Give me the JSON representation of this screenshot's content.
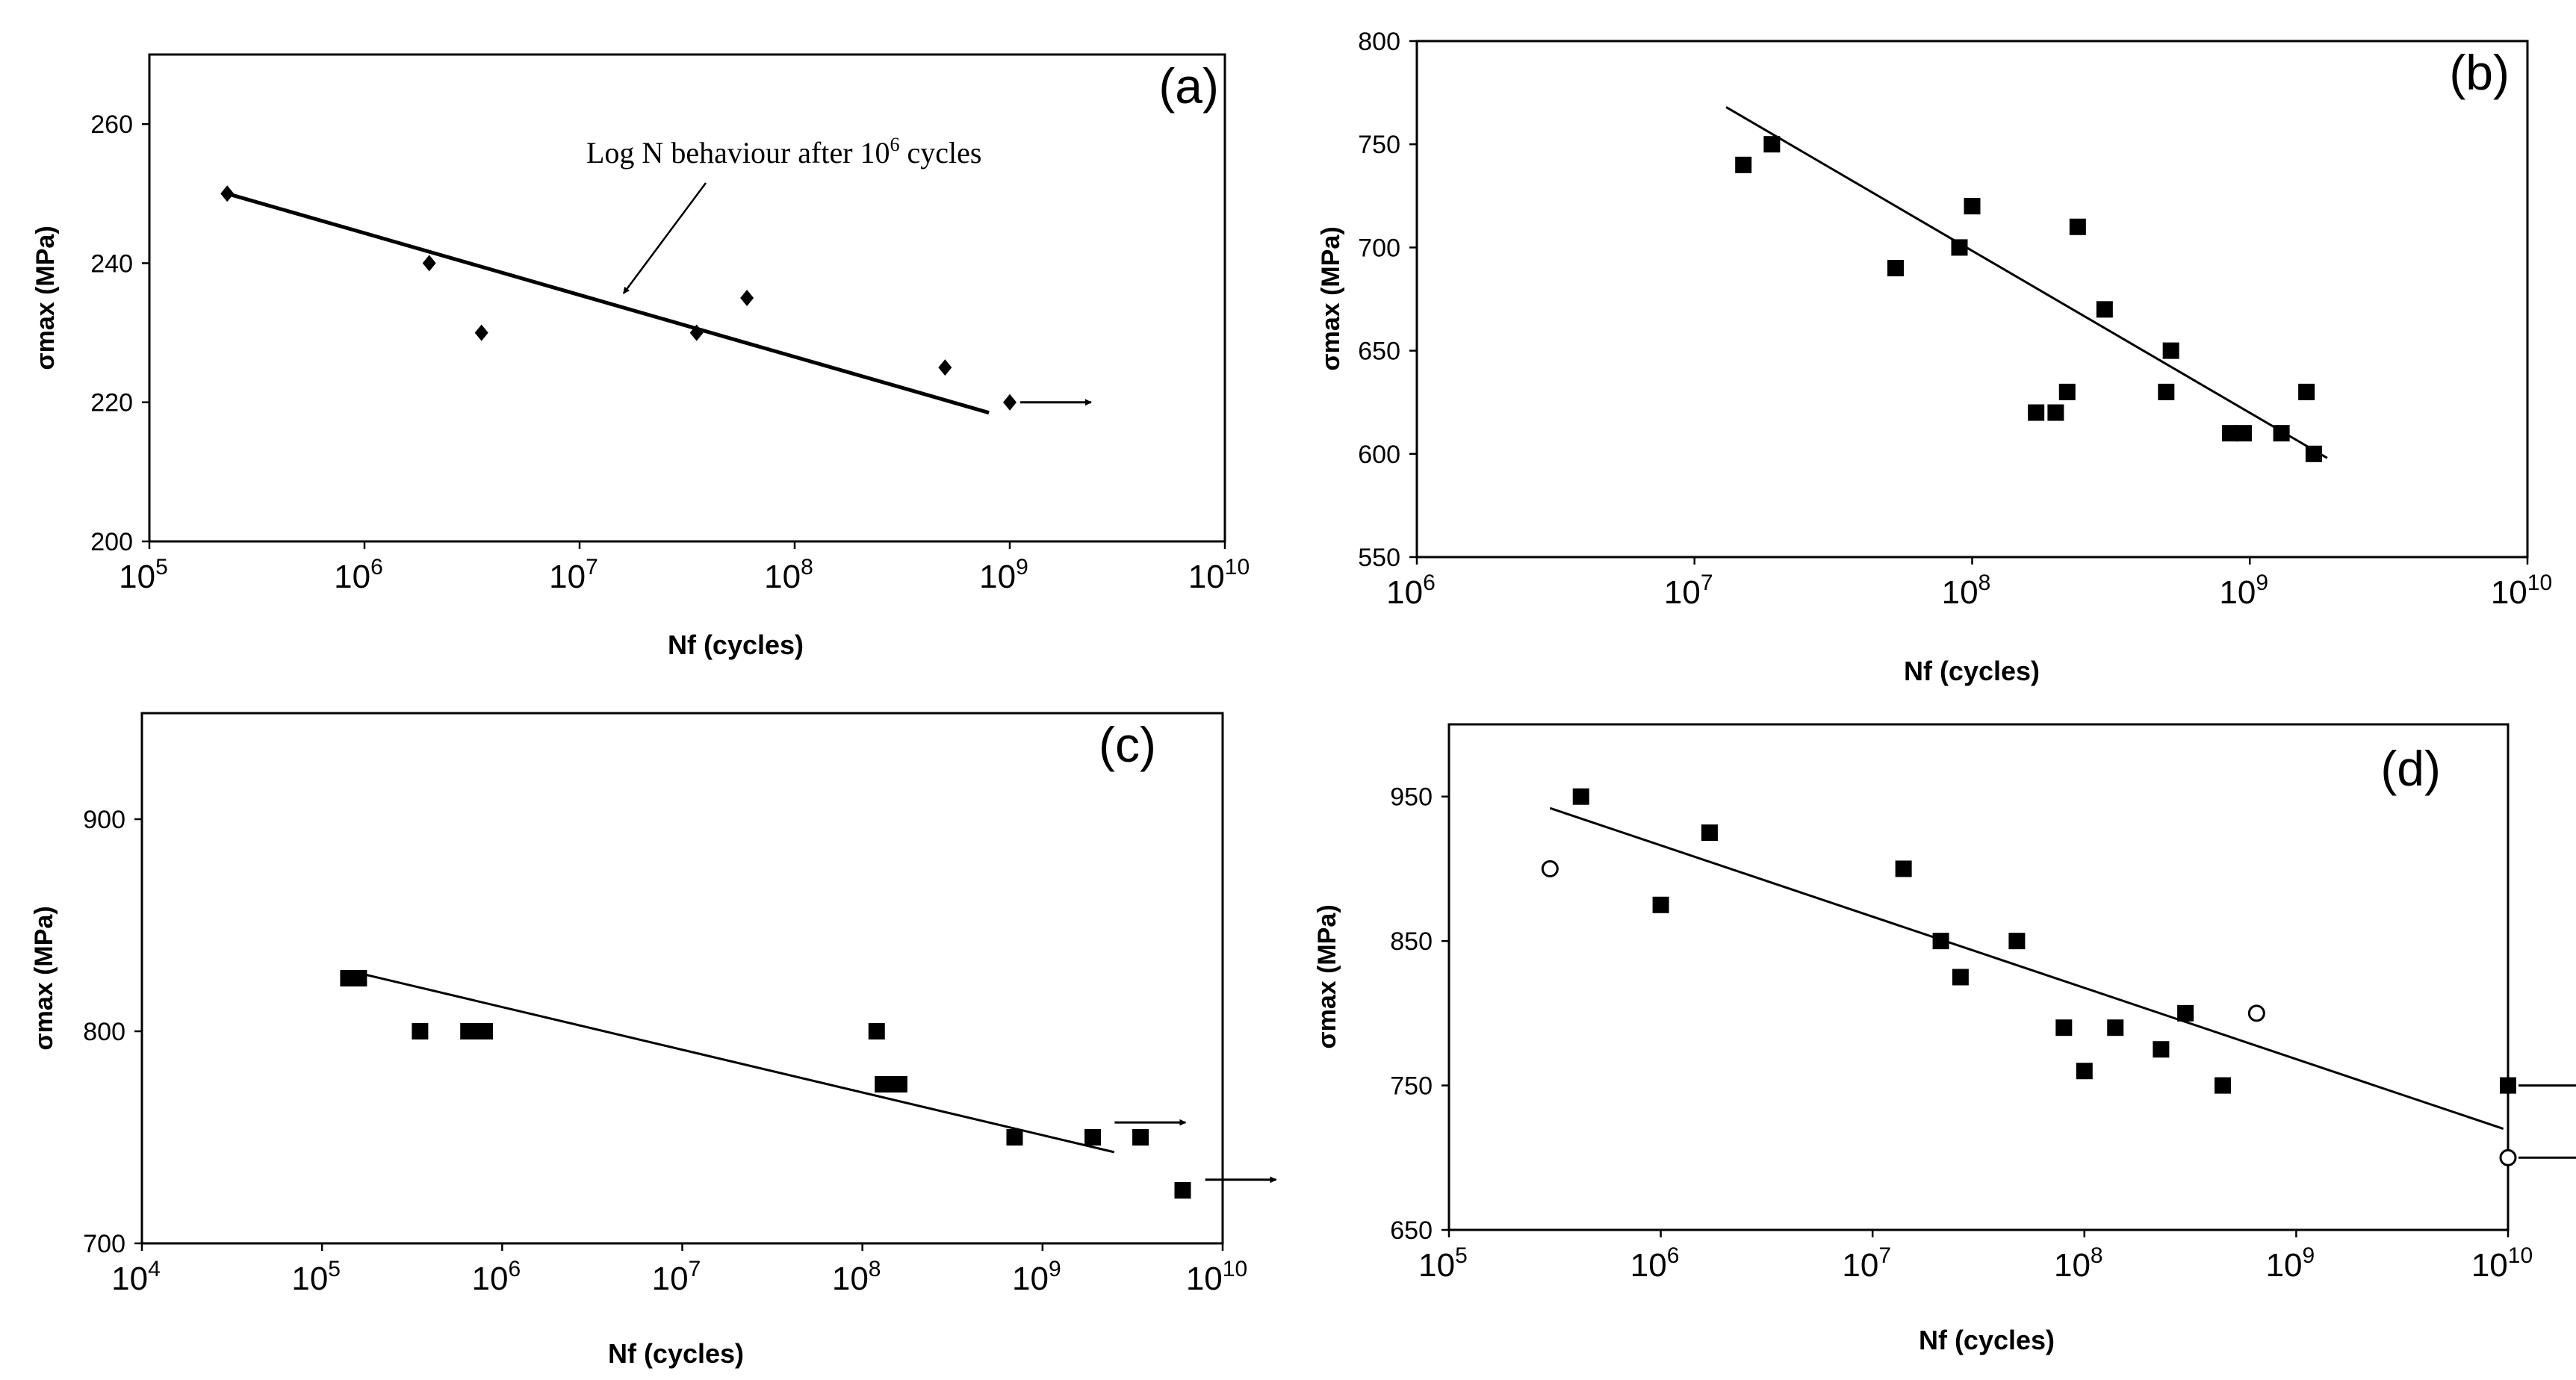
{
  "chart_data": [
    {
      "id": "a",
      "type": "scatter",
      "panel_label": "(a)",
      "xlabel": "Nf (cycles)",
      "ylabel": "σmax (MPa)",
      "x_scale": "log",
      "xlim": [
        100000,
        10000000000
      ],
      "ylim": [
        200,
        270
      ],
      "yticks": [
        200,
        220,
        240,
        260
      ],
      "xticks": [
        {
          "base": "10",
          "exp": "5"
        },
        {
          "base": "10",
          "exp": "6"
        },
        {
          "base": "10",
          "exp": "7"
        },
        {
          "base": "10",
          "exp": "8"
        },
        {
          "base": "10",
          "exp": "9"
        },
        {
          "base": "10",
          "exp": "10"
        }
      ],
      "series": [
        {
          "name": "data",
          "marker": "diamond",
          "points": [
            [
              230000,
              250
            ],
            [
              2000000,
              240
            ],
            [
              3500000,
              230
            ],
            [
              35000000,
              230
            ],
            [
              60000000,
              235
            ],
            [
              500000000,
              225
            ],
            [
              1000000000,
              220
            ]
          ]
        }
      ],
      "trendline": [
        [
          230000,
          250
        ],
        [
          800000000,
          218.5
        ]
      ],
      "runouts": [
        {
          "x": 1000000000,
          "y": 220
        }
      ],
      "annotation": {
        "text": "Log N behaviour after 10",
        "sup": "6",
        "text2": " cycles",
        "target": [
          16000000,
          235
        ]
      }
    },
    {
      "id": "b",
      "type": "scatter",
      "panel_label": "(b)",
      "xlabel": "Nf (cycles)",
      "ylabel": "σmax (MPa)",
      "x_scale": "log",
      "xlim": [
        1000000,
        10000000000
      ],
      "ylim": [
        550,
        800
      ],
      "yticks": [
        550,
        600,
        650,
        700,
        750,
        800
      ],
      "xticks": [
        {
          "base": "10",
          "exp": "6"
        },
        {
          "base": "10",
          "exp": "7"
        },
        {
          "base": "10",
          "exp": "8"
        },
        {
          "base": "10",
          "exp": "9"
        },
        {
          "base": "10",
          "exp": "10"
        }
      ],
      "series": [
        {
          "name": "data",
          "marker": "square",
          "points": [
            [
              15000000,
              740
            ],
            [
              19000000,
              750
            ],
            [
              53000000,
              690
            ],
            [
              90000000,
              700
            ],
            [
              100000000,
              720
            ],
            [
              170000000,
              620
            ],
            [
              200000000,
              620
            ],
            [
              220000000,
              630
            ],
            [
              240000000,
              710
            ],
            [
              300000000,
              670
            ],
            [
              500000000,
              630
            ],
            [
              520000000,
              650
            ],
            [
              850000000,
              610
            ],
            [
              950000000,
              610
            ],
            [
              1300000000,
              610
            ],
            [
              1600000000,
              630
            ],
            [
              1700000000,
              600
            ]
          ]
        }
      ],
      "trendline": [
        [
          13000000,
          768
        ],
        [
          1900000000,
          598
        ]
      ],
      "runouts": []
    },
    {
      "id": "c",
      "type": "scatter",
      "panel_label": "(c)",
      "xlabel": "Nf (cycles)",
      "ylabel": "σmax (MPa)",
      "x_scale": "log",
      "xlim": [
        10000,
        10000000000
      ],
      "ylim": [
        700,
        950
      ],
      "yticks": [
        700,
        800,
        900
      ],
      "xticks": [
        {
          "base": "10",
          "exp": "4"
        },
        {
          "base": "10",
          "exp": "5"
        },
        {
          "base": "10",
          "exp": "6"
        },
        {
          "base": "10",
          "exp": "7"
        },
        {
          "base": "10",
          "exp": "8"
        },
        {
          "base": "10",
          "exp": "9"
        },
        {
          "base": "10",
          "exp": "10"
        }
      ],
      "series": [
        {
          "name": "data",
          "marker": "square",
          "points": [
            [
              140000,
              825
            ],
            [
              160000,
              825
            ],
            [
              350000,
              800
            ],
            [
              650000,
              800
            ],
            [
              700000,
              800
            ],
            [
              800000,
              800
            ],
            [
              120000000,
              800
            ],
            [
              130000000,
              775
            ],
            [
              140000000,
              775
            ],
            [
              160000000,
              775
            ],
            [
              700000000,
              750
            ],
            [
              1900000000,
              750
            ],
            [
              3500000000,
              750
            ],
            [
              6000000000,
              725
            ]
          ]
        }
      ],
      "trendline": [
        [
          150000,
          828
        ],
        [
          2500000000,
          743
        ]
      ],
      "runouts": [
        {
          "x": 2200000000,
          "y": 757
        },
        {
          "x": 7000000000,
          "y": 730
        }
      ]
    },
    {
      "id": "d",
      "type": "scatter",
      "panel_label": "(d)",
      "xlabel": "Nf (cycles)",
      "ylabel": "σmax (MPa)",
      "x_scale": "log",
      "xlim": [
        100000,
        10000000000
      ],
      "ylim": [
        650,
        1000
      ],
      "yticks": [
        650,
        750,
        850,
        950
      ],
      "xticks": [
        {
          "base": "10",
          "exp": "5"
        },
        {
          "base": "10",
          "exp": "6"
        },
        {
          "base": "10",
          "exp": "7"
        },
        {
          "base": "10",
          "exp": "8"
        },
        {
          "base": "10",
          "exp": "9"
        },
        {
          "base": "10",
          "exp": "10"
        }
      ],
      "series": [
        {
          "name": "filled",
          "marker": "square",
          "points": [
            [
              420000,
              950
            ],
            [
              1000000,
              875
            ],
            [
              1700000,
              925
            ],
            [
              14000000,
              900
            ],
            [
              21000000,
              850
            ],
            [
              26000000,
              825
            ],
            [
              48000000,
              850
            ],
            [
              80000000,
              790
            ],
            [
              100000000,
              760
            ],
            [
              140000000,
              790
            ],
            [
              230000000,
              775
            ],
            [
              300000000,
              800
            ],
            [
              450000000,
              750
            ],
            [
              10000000000,
              750
            ]
          ]
        },
        {
          "name": "open",
          "marker": "circle-open",
          "points": [
            [
              300000,
              900
            ],
            [
              650000000,
              800
            ],
            [
              10000000000,
              700
            ]
          ]
        }
      ],
      "trendline": [
        [
          300000,
          942
        ],
        [
          9500000000,
          720
        ]
      ],
      "runouts": [
        {
          "x": 10000000000,
          "y": 750
        },
        {
          "x": 10000000000,
          "y": 700
        }
      ]
    }
  ]
}
